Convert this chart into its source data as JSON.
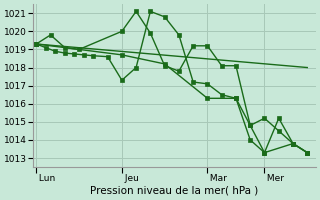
{
  "background_color": "#c8e8d8",
  "grid_color": "#a8c8b8",
  "line_color": "#1a6b1a",
  "marker_color": "#1a6b1a",
  "xlabel": "Pression niveau de la mer( hPa )",
  "ylim": [
    1012.5,
    1021.5
  ],
  "yticks": [
    1013,
    1014,
    1015,
    1016,
    1017,
    1018,
    1019,
    1020,
    1021
  ],
  "day_labels": [
    " Lun",
    " Jeu",
    " Mar",
    " Mer"
  ],
  "day_positions": [
    0,
    3,
    6,
    8
  ],
  "xlim": [
    -0.1,
    9.8
  ],
  "series1_x": [
    0.0,
    0.33,
    0.66,
    1.0,
    1.33,
    1.66,
    2.0,
    2.5,
    3.0,
    3.5,
    4.0,
    4.5,
    5.0,
    5.5,
    6.0,
    6.5,
    7.0,
    7.5,
    8.0,
    8.5,
    9.0,
    9.5
  ],
  "series1_y": [
    1019.3,
    1019.1,
    1018.9,
    1018.8,
    1018.75,
    1018.7,
    1018.65,
    1018.6,
    1017.3,
    1018.0,
    1021.1,
    1020.8,
    1019.8,
    1017.2,
    1017.1,
    1016.5,
    1016.3,
    1014.8,
    1013.3,
    1015.2,
    1013.8,
    1013.3
  ],
  "series2_x": [
    0.0,
    0.5,
    1.0,
    1.5,
    3.0,
    3.5,
    4.0,
    4.5,
    5.0,
    5.5,
    6.0,
    6.5,
    7.0,
    7.5,
    8.0,
    8.5,
    9.0,
    9.5
  ],
  "series2_y": [
    1019.3,
    1019.8,
    1019.1,
    1019.0,
    1020.0,
    1021.1,
    1019.9,
    1018.1,
    1017.8,
    1019.2,
    1019.2,
    1018.1,
    1018.1,
    1014.8,
    1015.2,
    1014.5,
    1013.8,
    1013.3
  ],
  "series3_x": [
    0.0,
    9.5
  ],
  "series3_y": [
    1019.3,
    1018.0
  ],
  "series4_x": [
    0.0,
    3.0,
    4.5,
    6.0,
    7.0,
    7.5,
    8.0,
    9.0,
    9.5
  ],
  "series4_y": [
    1019.3,
    1018.7,
    1018.2,
    1016.3,
    1016.3,
    1014.0,
    1013.3,
    1013.8,
    1013.3
  ]
}
